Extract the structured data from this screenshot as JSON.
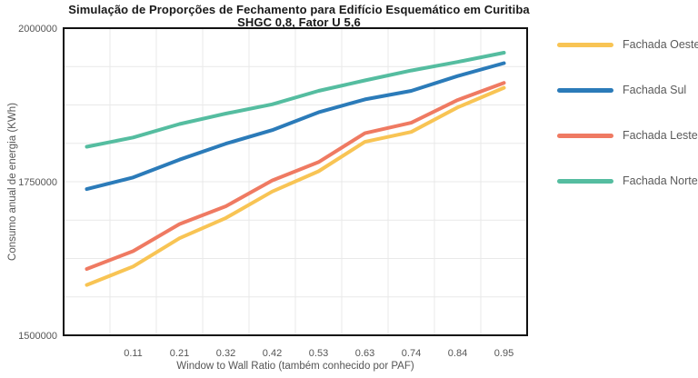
{
  "title": {
    "line1": "Simulação de Proporções de Fechamento para Edifício Esquemático em Curitiba",
    "line2": "SHGC 0,8, Fator U 5,6"
  },
  "colors": {
    "background": "#ffffff",
    "grid": "#e9e9e9",
    "border": "#111111",
    "tick_text": "#555555",
    "legend_text": "#5a5a5a",
    "title_text": "#191919"
  },
  "chart_data": {
    "type": "line",
    "title": "Simulação de Proporções de Fechamento para Edifício Esquemático em Curitiba",
    "subtitle": "SHGC 0,8, Fator U 5,6",
    "grid": true,
    "legend_position": "right",
    "x_axis": {
      "label": "Window to Wall Ratio (também conhecido por PAF)",
      "tick_labels": [
        "",
        "0.11",
        "0.21",
        "0.32",
        "0.42",
        "0.53",
        "0.63",
        "0.74",
        "0.84",
        "0.95"
      ]
    },
    "y_axis": {
      "label": "Consumo anual de energia (KWh)",
      "range": [
        1500000,
        2000000
      ],
      "grid_step": 62500,
      "ticks": [
        {
          "label": "2000000",
          "value": 2000000
        },
        {
          "label": "1750000",
          "value": 1750000
        },
        {
          "label": "1500000",
          "value": 1500000
        }
      ]
    },
    "series": [
      {
        "name": "Fachada Oeste",
        "color": "#f8c454",
        "values": [
          1582000,
          1612000,
          1658000,
          1691000,
          1734000,
          1767000,
          1815000,
          1831000,
          1871000,
          1903000
        ]
      },
      {
        "name": "Fachada Sul",
        "color": "#2b7bb9",
        "values": [
          1738000,
          1757000,
          1786000,
          1812000,
          1834000,
          1863000,
          1884000,
          1898000,
          1922000,
          1943000
        ]
      },
      {
        "name": "Fachada Leste",
        "color": "#ef7a62",
        "values": [
          1608000,
          1637000,
          1681000,
          1710000,
          1752000,
          1782000,
          1829000,
          1846000,
          1883000,
          1911000
        ]
      },
      {
        "name": "Fachada Norte",
        "color": "#55bda0",
        "values": [
          1807000,
          1822000,
          1844000,
          1861000,
          1876000,
          1898000,
          1915000,
          1931000,
          1945000,
          1960000
        ]
      }
    ]
  }
}
